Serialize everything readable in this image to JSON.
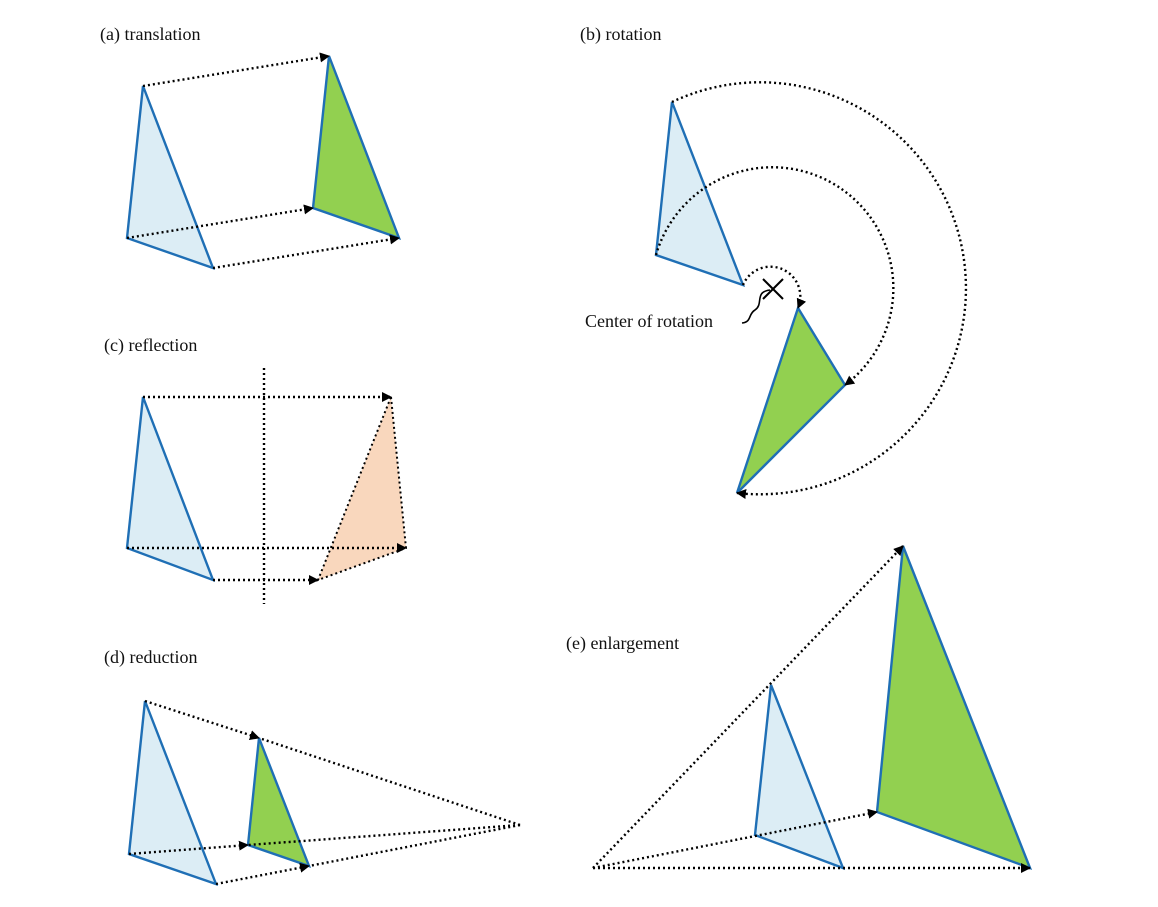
{
  "colors": {
    "original_fill": "#dcedf5",
    "image_fill": "#92d050",
    "reflection_fill": "#f9d7bd",
    "outline": "#1f6fb5",
    "arrow": "#000000"
  },
  "panels": {
    "translation": {
      "label": "(a) translation"
    },
    "rotation": {
      "label": "(b) rotation",
      "center_label": "Center of rotation"
    },
    "reflection": {
      "label": "(c) reflection"
    },
    "reduction": {
      "label": "(d) reduction"
    },
    "enlargement": {
      "label": "(e) enlargement"
    }
  }
}
